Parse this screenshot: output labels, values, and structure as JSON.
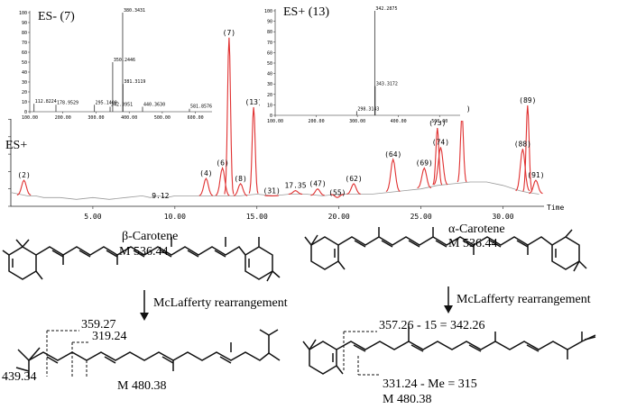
{
  "chart_data": [
    {
      "id": "main_chromatogram",
      "type": "line",
      "mode_label": "ES+",
      "xlabel": "Time",
      "xlim": [
        0,
        32.5
      ],
      "ylim": [
        0,
        100
      ],
      "x_ticks": [
        5,
        10,
        15,
        20,
        25,
        30
      ],
      "x_tick_labels": [
        "5.00",
        "10.00",
        "15.00",
        "20.00",
        "25.00",
        "30.00"
      ],
      "y_ticks": [
        0,
        10,
        20,
        30,
        40,
        50,
        60,
        70,
        80,
        90,
        100
      ],
      "baseline": {
        "name": "baseline",
        "color": "#9a9a9a",
        "x": [
          0,
          0.5,
          1.0,
          1.5,
          2,
          3,
          4,
          5,
          6,
          7,
          8,
          8.5,
          9,
          9.5,
          10,
          11,
          12,
          13,
          14,
          15,
          16,
          17,
          18,
          19,
          20,
          21,
          22,
          23,
          24,
          25,
          26,
          27,
          28,
          29,
          30,
          31,
          31.5,
          32.2
        ],
        "y": [
          8,
          7,
          6,
          6,
          5,
          5,
          4,
          5,
          4,
          5,
          6,
          5,
          6,
          5,
          6,
          6,
          6,
          6,
          6,
          7,
          6,
          7,
          7,
          6,
          7,
          7,
          7,
          8,
          9,
          10,
          12,
          13,
          14,
          14,
          12,
          9,
          8,
          7
        ]
      },
      "series": [
        {
          "name": "peaks",
          "color": "#e03030",
          "peaks": [
            {
              "label": "(2)",
              "t": 0.8,
              "h": 15
            },
            {
              "label": "(4)",
              "t": 11.9,
              "h": 16
            },
            {
              "label": "(6)",
              "t": 12.9,
              "h": 22
            },
            {
              "label": "(7)",
              "t": 13.3,
              "h": 97
            },
            {
              "label": "(8)",
              "t": 14.0,
              "h": 13
            },
            {
              "label": "(13)",
              "t": 14.8,
              "h": 57
            },
            {
              "label": "(31)",
              "t": 15.9,
              "h": 6
            },
            {
              "label": "17.35",
              "t": 17.35,
              "h": 9
            },
            {
              "label": "(47)",
              "t": 18.7,
              "h": 10
            },
            {
              "label": "(55)",
              "t": 19.9,
              "h": 5
            },
            {
              "label": "(62)",
              "t": 20.9,
              "h": 13
            },
            {
              "label": "(64)",
              "t": 23.3,
              "h": 27
            },
            {
              "label": "(69)",
              "t": 25.2,
              "h": 22
            },
            {
              "label": "(73)",
              "t": 26.0,
              "h": 45
            },
            {
              "label": "(74)",
              "t": 26.2,
              "h": 34
            },
            {
              "label": "(78)",
              "t": 27.5,
              "h": 53
            },
            {
              "label": "(88)",
              "t": 31.2,
              "h": 33
            },
            {
              "label": "(89)",
              "t": 31.5,
              "h": 58
            },
            {
              "label": "(91)",
              "t": 32.0,
              "h": 15
            }
          ]
        }
      ],
      "annotations": [
        {
          "label": "9.12",
          "t": 9.12,
          "h": 3
        }
      ]
    },
    {
      "id": "inset_es_minus",
      "type": "bar",
      "title": "ES- (7)",
      "xlim": [
        100,
        650
      ],
      "ylim": [
        0,
        100
      ],
      "x_ticks": [
        100,
        200,
        300,
        400,
        500,
        600
      ],
      "x_tick_labels": [
        "100.00",
        "200.00",
        "300.00",
        "400.00",
        "500.00",
        "600.00"
      ],
      "y_ticks": [
        0,
        10,
        20,
        30,
        40,
        50,
        60,
        70,
        80,
        90,
        100
      ],
      "y_tick_labels": [
        "0",
        "10",
        "20",
        "30",
        "40",
        "50",
        "60",
        "70",
        "80",
        "90",
        "100"
      ],
      "peaks": [
        {
          "mz": 112.8224,
          "h": 8,
          "label": "112.8224"
        },
        {
          "mz": 178.9529,
          "h": 7,
          "label": "178.9529"
        },
        {
          "mz": 295.14,
          "h": 7,
          "label": "295.1400"
        },
        {
          "mz": 342.3951,
          "h": 5,
          "label": "342.3951"
        },
        {
          "mz": 350.2446,
          "h": 50,
          "label": "350.2446"
        },
        {
          "mz": 380.3431,
          "h": 100,
          "label": "380.3431"
        },
        {
          "mz": 381.3119,
          "h": 28,
          "label": "381.3119"
        },
        {
          "mz": 440.363,
          "h": 5,
          "label": "440.3630"
        },
        {
          "mz": 581.8576,
          "h": 3,
          "label": "581.8576"
        }
      ]
    },
    {
      "id": "inset_es_plus",
      "type": "bar",
      "title": "ES+ (13)",
      "xlim": [
        100,
        550
      ],
      "ylim": [
        0,
        100
      ],
      "x_ticks": [
        100,
        200,
        300,
        400,
        500
      ],
      "x_tick_labels": [
        "100.00",
        "200.00",
        "300.00",
        "400.00",
        "500.00"
      ],
      "y_ticks": [
        0,
        10,
        20,
        30,
        40,
        50,
        60,
        70,
        80,
        90,
        100
      ],
      "y_tick_labels": [
        "0",
        "10",
        "20",
        "30",
        "40",
        "50",
        "60",
        "70",
        "80",
        "90",
        "100"
      ],
      "peaks": [
        {
          "mz": 298.3143,
          "h": 4,
          "label": "298.3143"
        },
        {
          "mz": 342.2875,
          "h": 100,
          "label": "342.2875"
        },
        {
          "mz": 343.3172,
          "h": 28,
          "label": "343.3172"
        }
      ]
    }
  ],
  "structures": {
    "beta": {
      "name": "β-Carotene",
      "mass": "M 536.44",
      "arrow_text": "McLafferty rearrangement",
      "frag1": "359.27",
      "frag2": "319.24",
      "frag3": "439.34",
      "product_mass": "M 480.38"
    },
    "alpha": {
      "name": "α-Carotene",
      "mass": "M 536.44",
      "arrow_text": "McLafferty rearrangement",
      "frag1": "357.26 - 15 = 342.26",
      "frag2": "331.24 - Me = 315",
      "product_mass": "M 480.38"
    }
  }
}
